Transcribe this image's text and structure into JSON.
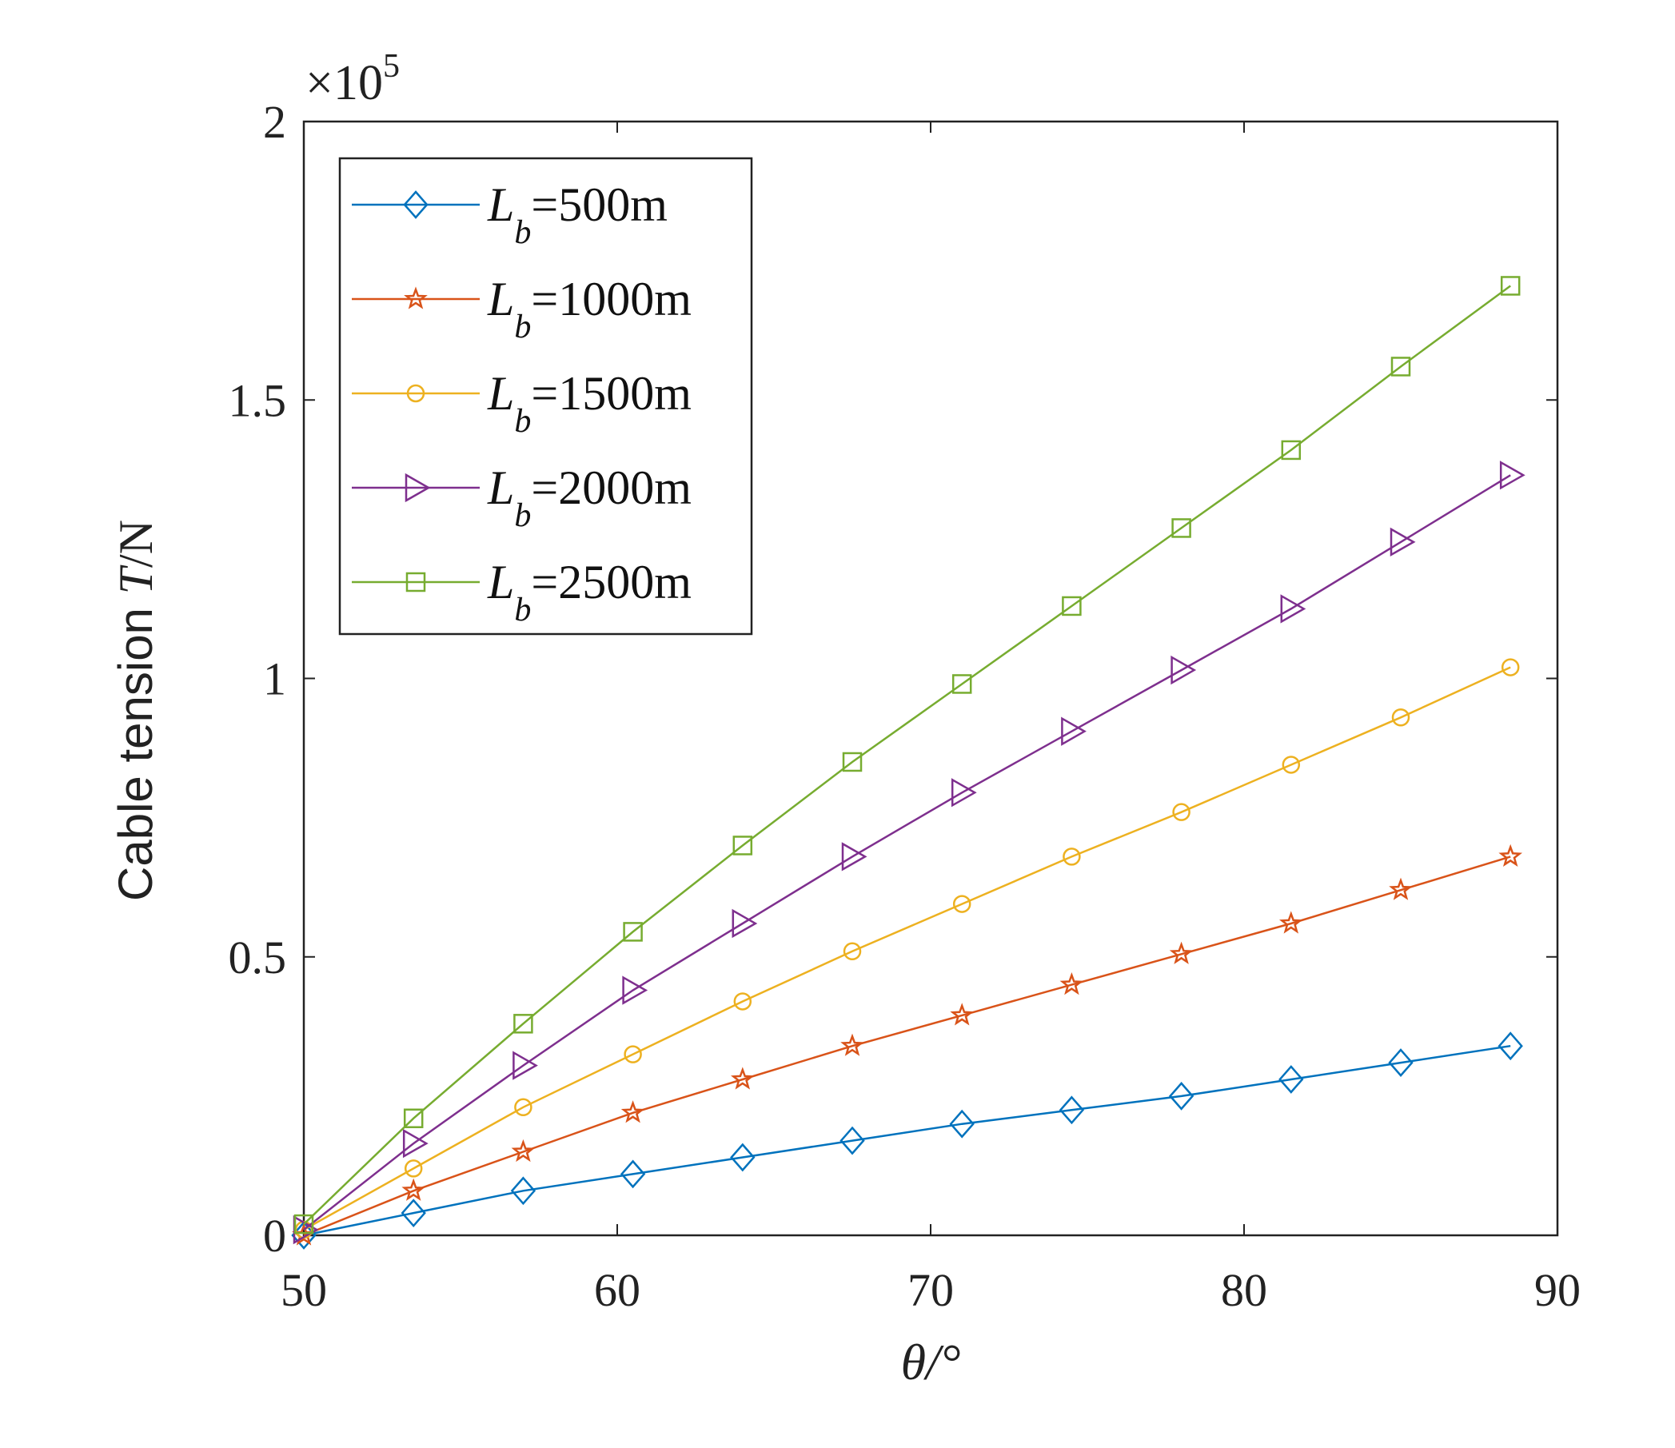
{
  "chart_data": {
    "type": "line",
    "xlabel": "θ/°",
    "ylabel_prefix": "Cable tension",
    "ylabel_var": "T",
    "ylabel_unit": "/N",
    "y_multiplier": "×10",
    "y_multiplier_exp": "5",
    "xlim": [
      50,
      90
    ],
    "ylim": [
      0,
      2
    ],
    "xticks": [
      "50",
      "60",
      "70",
      "80",
      "90"
    ],
    "yticks": [
      "0",
      "0.5",
      "1",
      "1.5",
      "2"
    ],
    "x": [
      50,
      53.5,
      57,
      60.5,
      64,
      67.5,
      71,
      74.5,
      78,
      81.5,
      85,
      88.5
    ],
    "series": [
      {
        "name": "L_b=500m",
        "label_main": "L",
        "label_sub": "b",
        "label_rest": "=500m",
        "color": "#0072BD",
        "marker": "diamond",
        "values": [
          0.0,
          0.04,
          0.08,
          0.11,
          0.14,
          0.17,
          0.2,
          0.225,
          0.25,
          0.28,
          0.31,
          0.34
        ]
      },
      {
        "name": "L_b=1000m",
        "label_main": "L",
        "label_sub": "b",
        "label_rest": "=1000m",
        "color": "#D95319",
        "marker": "star",
        "values": [
          0.0,
          0.08,
          0.15,
          0.22,
          0.28,
          0.34,
          0.395,
          0.45,
          0.505,
          0.56,
          0.62,
          0.68
        ]
      },
      {
        "name": "L_b=1500m",
        "label_main": "L",
        "label_sub": "b",
        "label_rest": "=1500m",
        "color": "#EDB120",
        "marker": "circle",
        "values": [
          0.01,
          0.12,
          0.23,
          0.325,
          0.42,
          0.51,
          0.595,
          0.68,
          0.76,
          0.845,
          0.93,
          1.02
        ]
      },
      {
        "name": "L_b=2000m",
        "label_main": "L",
        "label_sub": "b",
        "label_rest": "=2000m",
        "color": "#7E2F8E",
        "marker": "triangle-right",
        "values": [
          0.01,
          0.165,
          0.305,
          0.44,
          0.56,
          0.68,
          0.795,
          0.905,
          1.015,
          1.125,
          1.245,
          1.365
        ]
      },
      {
        "name": "L_b=2500m",
        "label_main": "L",
        "label_sub": "b",
        "label_rest": "=2500m",
        "color": "#77AC30",
        "marker": "square",
        "values": [
          0.02,
          0.21,
          0.38,
          0.545,
          0.7,
          0.85,
          0.99,
          1.13,
          1.27,
          1.41,
          1.56,
          1.705
        ]
      }
    ],
    "legend_position": "top-left"
  }
}
